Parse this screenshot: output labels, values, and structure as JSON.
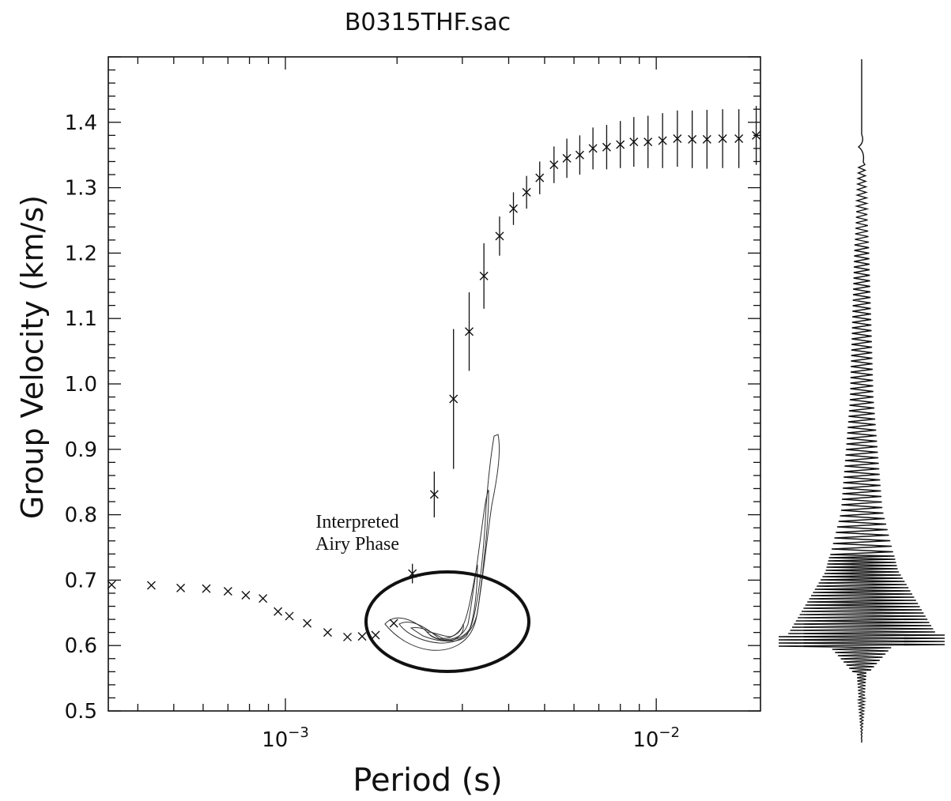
{
  "chart_data": {
    "type": "scatter",
    "title": "B0315THF.sac",
    "xlabel": "Period (s)",
    "ylabel": "Group Velocity (km/s)",
    "x_scale": "log",
    "xlim": [
      0.000333,
      0.0191
    ],
    "ylim": [
      0.5,
      1.5
    ],
    "x_tick_labels": [
      {
        "value": 0.001,
        "base": "10",
        "exp": "−3"
      },
      {
        "value": 0.01,
        "base": "10",
        "exp": "−2"
      }
    ],
    "y_ticks": [
      0.5,
      0.6,
      0.7,
      0.8,
      0.9,
      1.0,
      1.1,
      1.2,
      1.3,
      1.4
    ],
    "y_tick_labels": [
      "0.5",
      "0.6",
      "0.7",
      "0.8",
      "0.9",
      "1.0",
      "1.1",
      "1.2",
      "1.3",
      "1.4"
    ],
    "grid": false,
    "annotation": {
      "lines": [
        "Interpreted",
        "Airy Phase"
      ]
    },
    "series": [
      {
        "marker": "x",
        "points": [
          {
            "x": 0.00034,
            "y": 0.693,
            "err": 0
          },
          {
            "x": 0.000435,
            "y": 0.692,
            "err": 0
          },
          {
            "x": 0.000522,
            "y": 0.688,
            "err": 0
          },
          {
            "x": 0.000612,
            "y": 0.687,
            "err": 0
          },
          {
            "x": 0.0007,
            "y": 0.683,
            "err": 0
          },
          {
            "x": 0.000782,
            "y": 0.677,
            "err": 0
          },
          {
            "x": 0.00087,
            "y": 0.672,
            "err": 0
          },
          {
            "x": 0.000955,
            "y": 0.652,
            "err": 0
          },
          {
            "x": 0.001025,
            "y": 0.645,
            "err": 0
          },
          {
            "x": 0.001145,
            "y": 0.634,
            "err": 0
          },
          {
            "x": 0.0013,
            "y": 0.62,
            "err": 0
          },
          {
            "x": 0.00147,
            "y": 0.613,
            "err": 0
          },
          {
            "x": 0.00161,
            "y": 0.614,
            "err": 0
          },
          {
            "x": 0.00175,
            "y": 0.616,
            "err": 0
          },
          {
            "x": 0.00196,
            "y": 0.634,
            "err": 0
          },
          {
            "x": 0.0022,
            "y": 0.71,
            "err": 0.015
          },
          {
            "x": 0.00252,
            "y": 0.831,
            "err": 0.035
          },
          {
            "x": 0.00284,
            "y": 0.977,
            "err": 0.107
          },
          {
            "x": 0.00313,
            "y": 1.08,
            "err": 0.06
          },
          {
            "x": 0.00343,
            "y": 1.165,
            "err": 0.05
          },
          {
            "x": 0.00378,
            "y": 1.226,
            "err": 0.03
          },
          {
            "x": 0.00412,
            "y": 1.268,
            "err": 0.025
          },
          {
            "x": 0.00447,
            "y": 1.293,
            "err": 0.025
          },
          {
            "x": 0.00485,
            "y": 1.315,
            "err": 0.025
          },
          {
            "x": 0.0053,
            "y": 1.335,
            "err": 0.028
          },
          {
            "x": 0.00574,
            "y": 1.345,
            "err": 0.03
          },
          {
            "x": 0.00622,
            "y": 1.35,
            "err": 0.03
          },
          {
            "x": 0.00675,
            "y": 1.36,
            "err": 0.032
          },
          {
            "x": 0.00735,
            "y": 1.362,
            "err": 0.034
          },
          {
            "x": 0.008,
            "y": 1.366,
            "err": 0.036
          },
          {
            "x": 0.0087,
            "y": 1.37,
            "err": 0.038
          },
          {
            "x": 0.0095,
            "y": 1.37,
            "err": 0.04
          },
          {
            "x": 0.0104,
            "y": 1.372,
            "err": 0.042
          },
          {
            "x": 0.0114,
            "y": 1.375,
            "err": 0.043
          },
          {
            "x": 0.0125,
            "y": 1.374,
            "err": 0.044
          },
          {
            "x": 0.0137,
            "y": 1.374,
            "err": 0.045
          },
          {
            "x": 0.0151,
            "y": 1.375,
            "err": 0.045
          },
          {
            "x": 0.0167,
            "y": 1.375,
            "err": 0.045
          },
          {
            "x": 0.0186,
            "y": 1.38,
            "err": 0.045
          }
        ]
      }
    ]
  }
}
